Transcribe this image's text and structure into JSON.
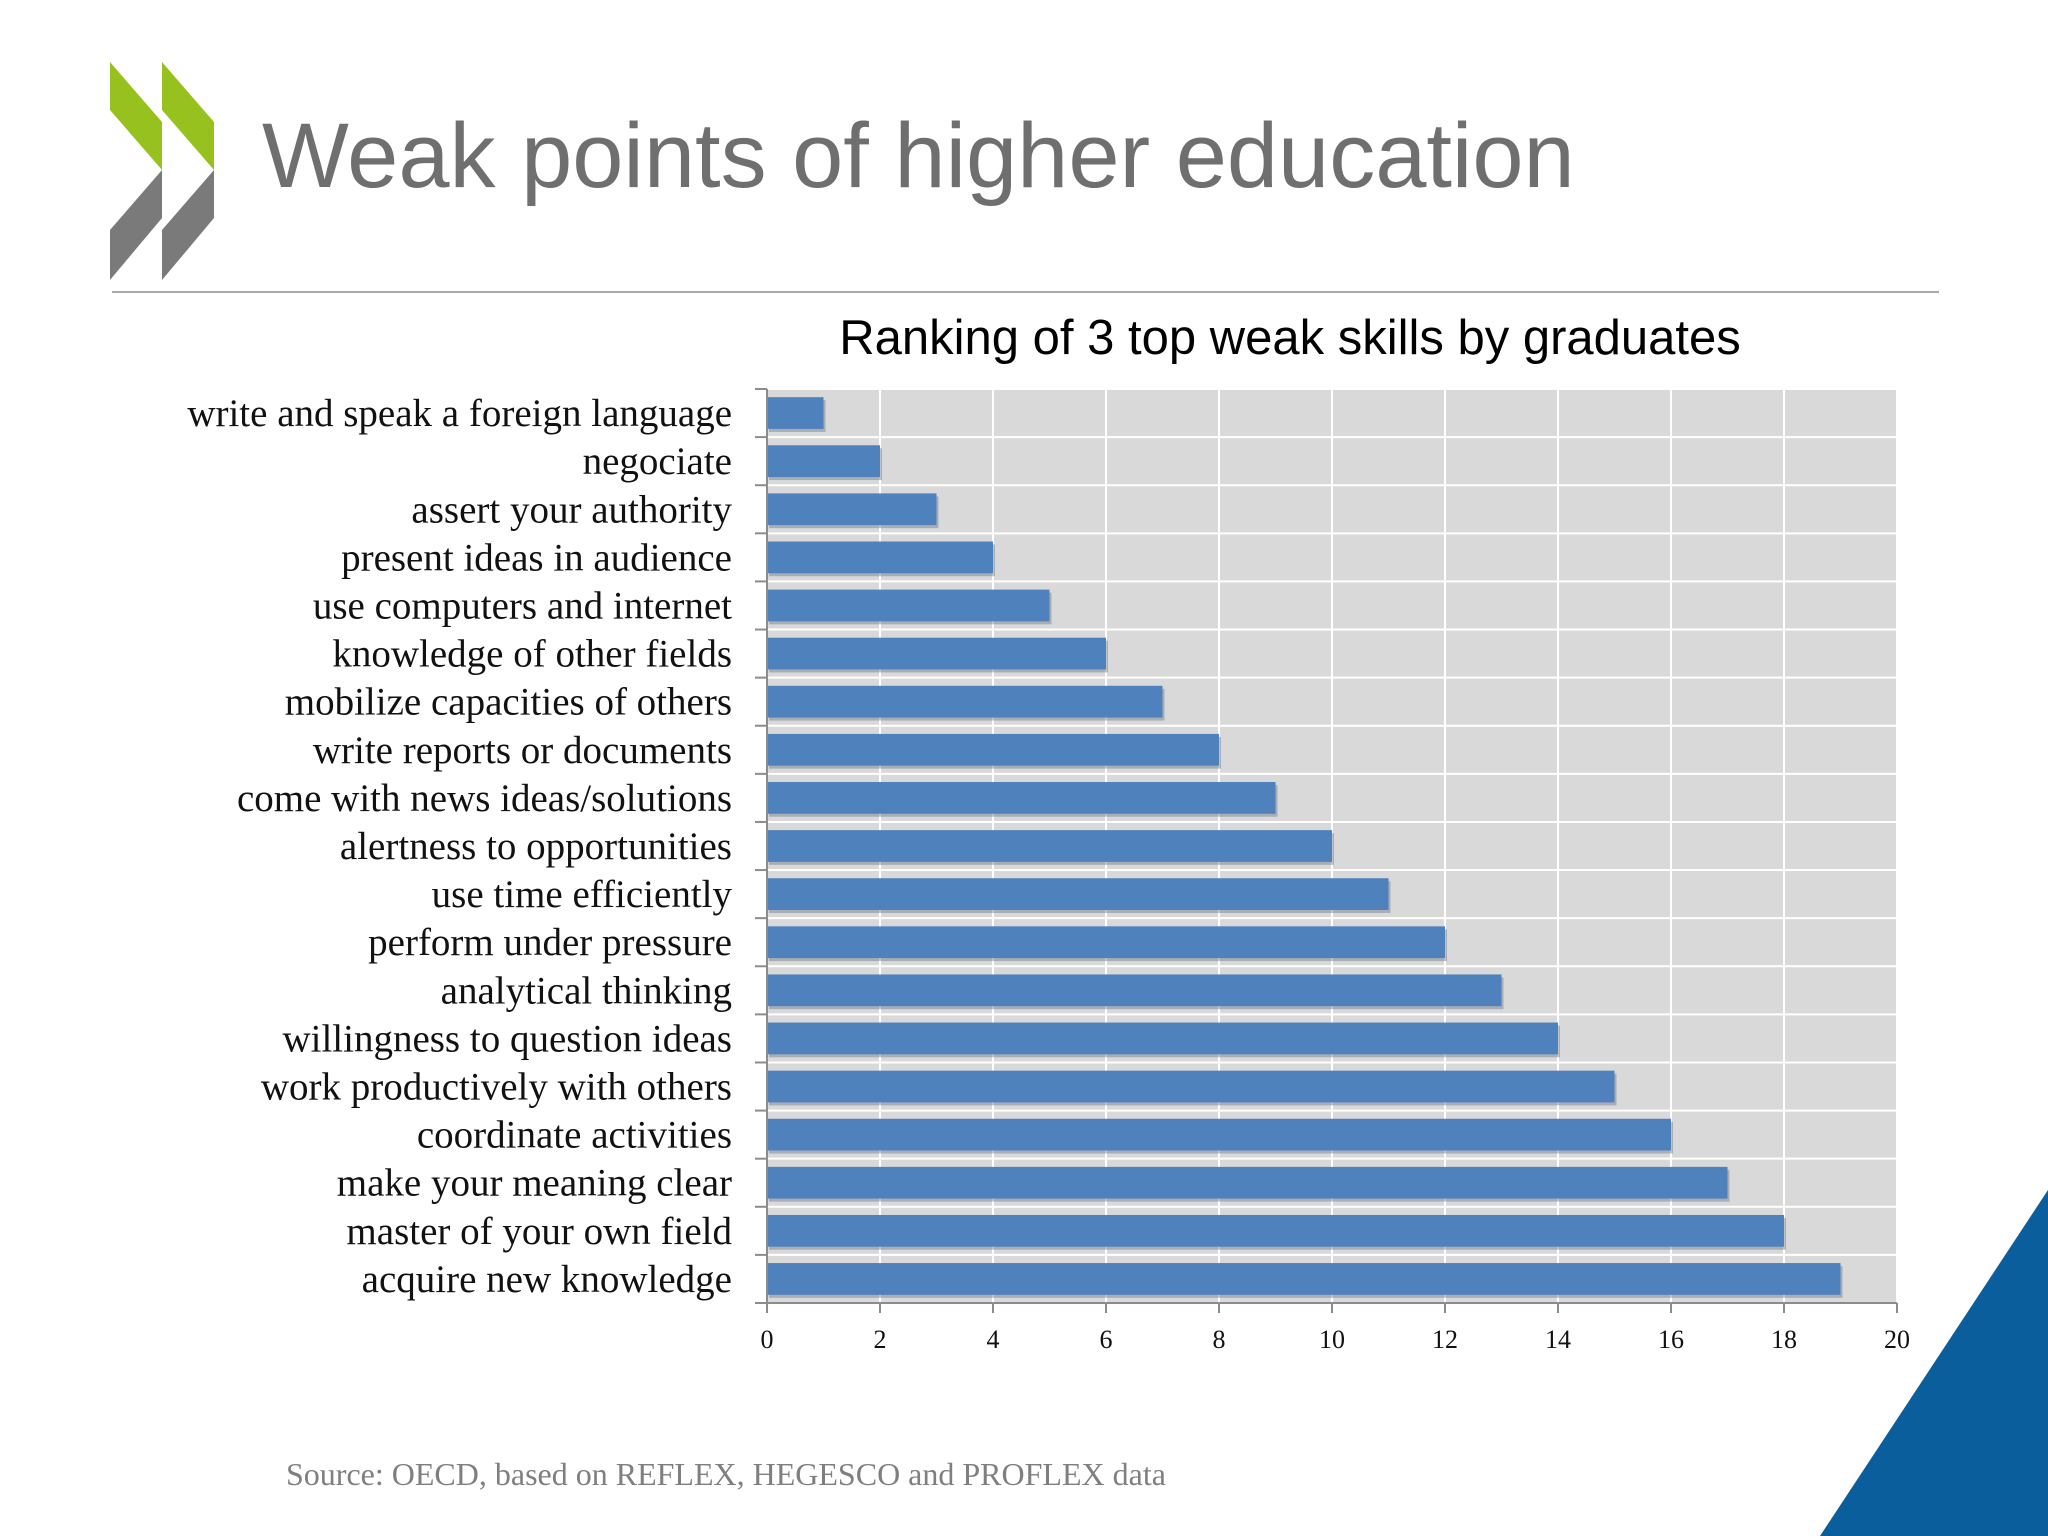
{
  "slide": {
    "title": "Weak points of higher education",
    "source": "Source: OECD, based on REFLEX, HEGESCO and PROFLEX data",
    "logo_icon": "double-chevron-icon",
    "colors": {
      "title": "#6f6f6f",
      "logo_green": "#97c11f",
      "logo_gray": "#7a7a7a",
      "corner_blue": "#0a5e9c"
    }
  },
  "chart_data": {
    "type": "bar",
    "orientation": "horizontal",
    "title": "Ranking of 3 top weak skills by graduates",
    "xlabel": "",
    "ylabel": "",
    "categories": [
      "write and speak a foreign language",
      "negociate",
      "assert your authority",
      "present ideas in audience",
      "use computers and internet",
      "knowledge of other fields",
      "mobilize capacities of others",
      "write reports or documents",
      "come with news ideas/solutions",
      "alertness to opportunities",
      "use time efficiently",
      "perform under pressure",
      "analytical thinking",
      "willingness to question ideas",
      "work productively with others",
      "coordinate activities",
      "make your meaning clear",
      "master of your own field",
      "acquire new knowledge"
    ],
    "values": [
      1,
      2,
      3,
      4,
      5,
      6,
      7,
      8,
      9,
      10,
      11,
      12,
      13,
      14,
      15,
      16,
      17,
      18,
      19
    ],
    "xlim": [
      0,
      20
    ],
    "xticks": [
      0,
      2,
      4,
      6,
      8,
      10,
      12,
      14,
      16,
      18,
      20
    ],
    "grid": true,
    "legend": "none",
    "bar_color": "#4f81bd",
    "plot_background": "#d9d9d9"
  }
}
